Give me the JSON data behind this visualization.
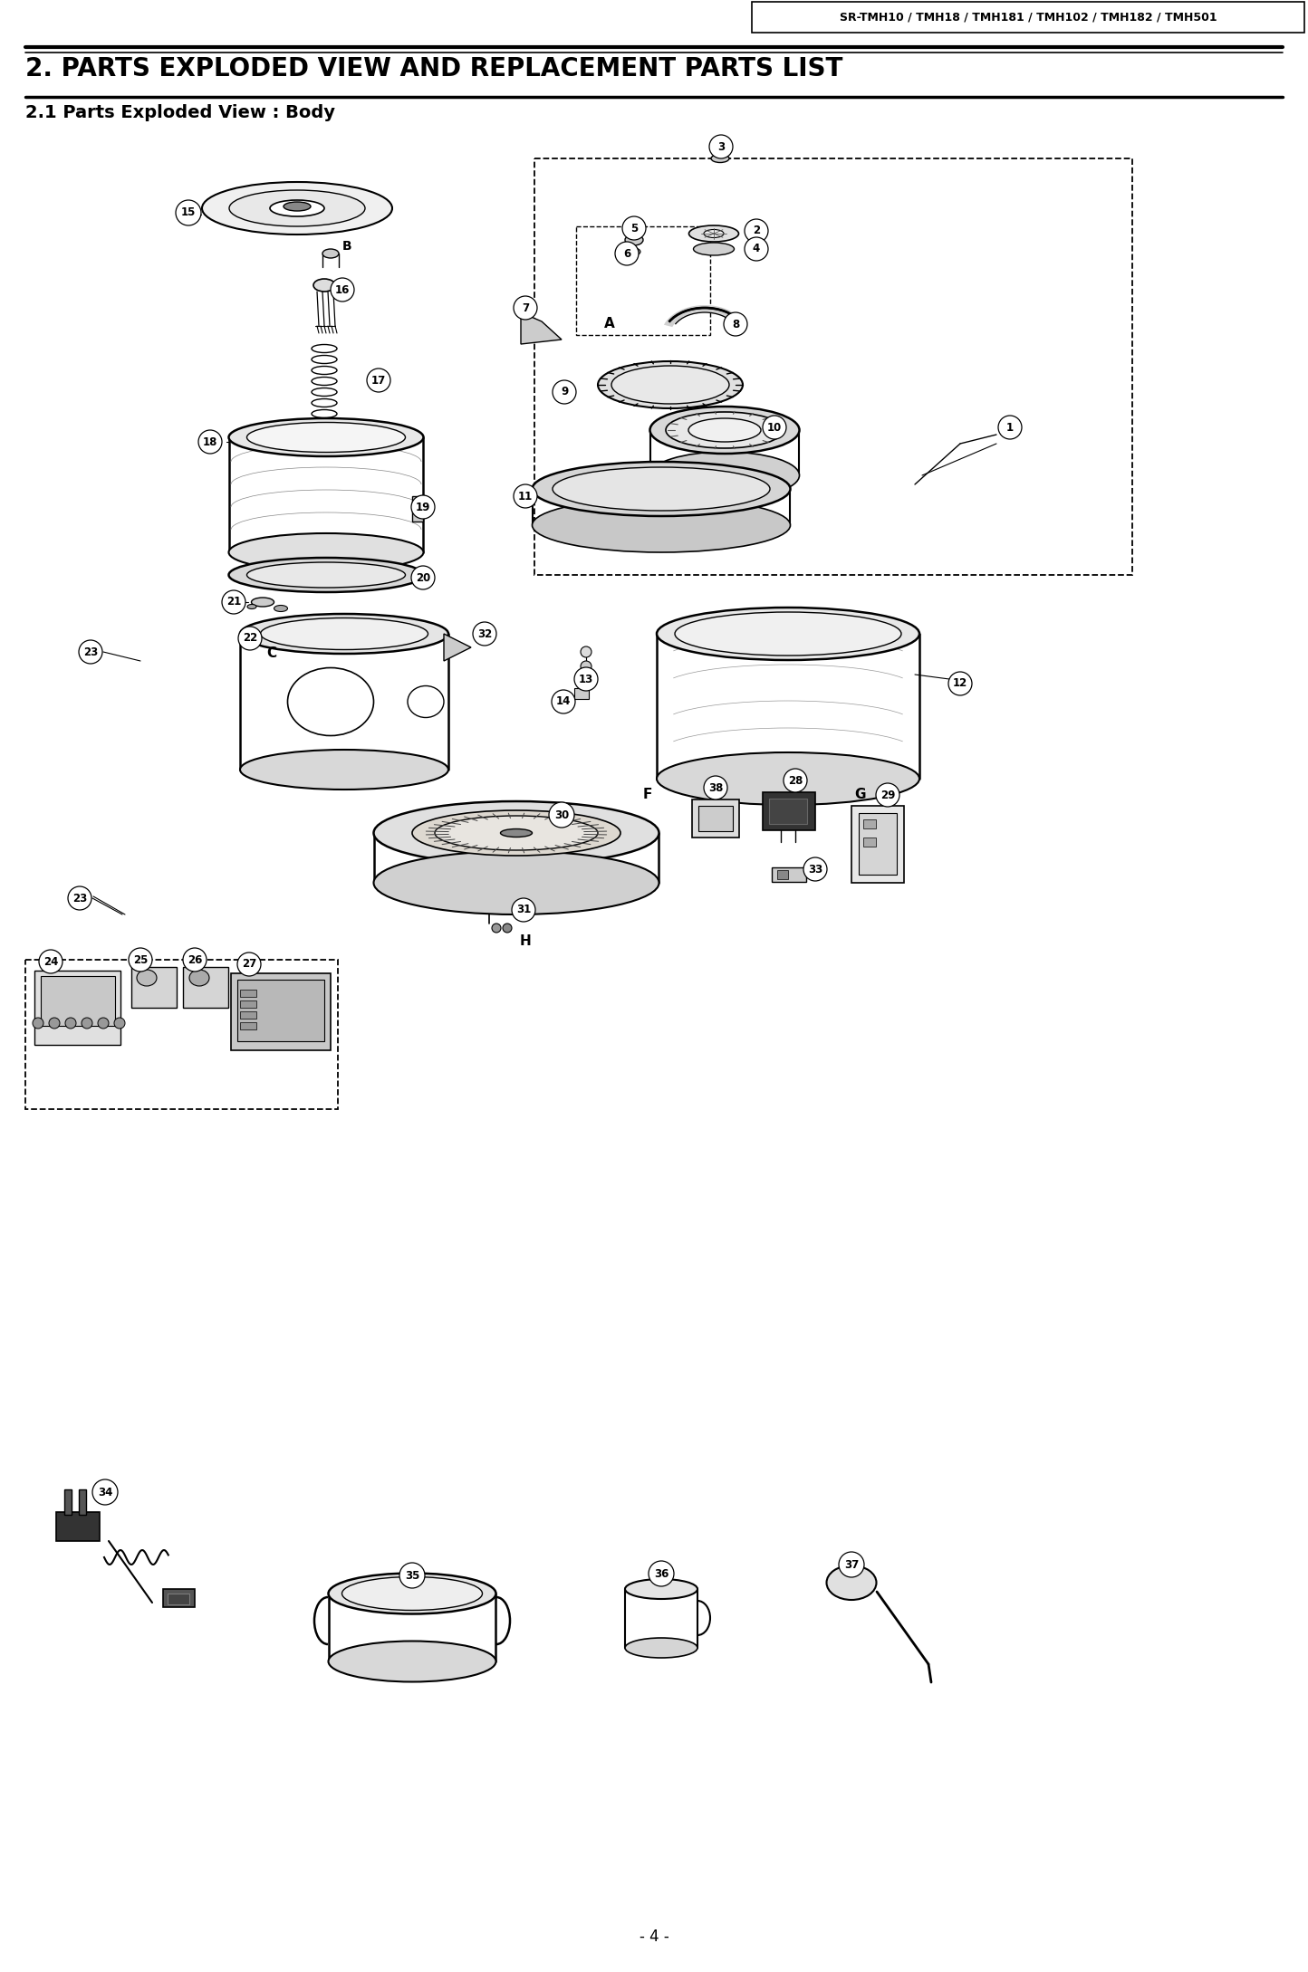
{
  "header_text": "SR-TMH10 / TMH18 / TMH181 / TMH102 / TMH182 / TMH501",
  "title": "2. PARTS EXPLODED VIEW AND REPLACEMENT PARTS LIST",
  "subtitle": "2.1 Parts Exploded View : Body",
  "footer": "- 4 -",
  "bg_color": "#ffffff",
  "fig_w": 14.44,
  "fig_h": 21.78,
  "dpi": 100
}
